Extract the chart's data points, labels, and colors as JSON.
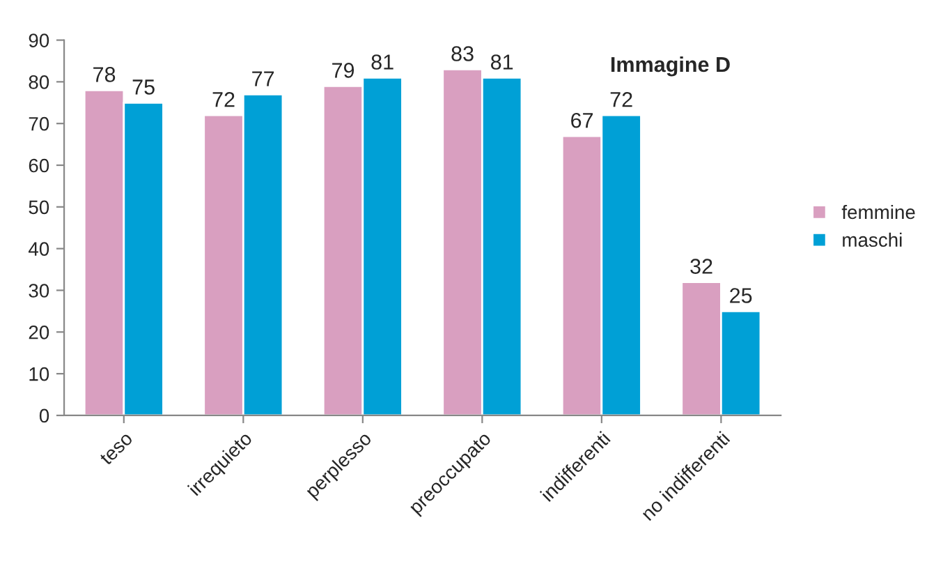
{
  "chart_data": {
    "type": "bar",
    "title": "Immagine D",
    "categories": [
      "teso",
      "irrequieto",
      "perplesso",
      "preoccupato",
      "indifferenti",
      "no indifferenti"
    ],
    "series": [
      {
        "name": "femmine",
        "color": "#d99fc0",
        "values": [
          78,
          72,
          79,
          83,
          67,
          32
        ]
      },
      {
        "name": "maschi",
        "color": "#00a0d6",
        "values": [
          75,
          77,
          81,
          81,
          72,
          25
        ]
      }
    ],
    "ylim": [
      0,
      90
    ],
    "yticks": [
      0,
      10,
      20,
      30,
      40,
      50,
      60,
      70,
      80,
      90
    ],
    "data_labels": true,
    "legend": "right",
    "grid": false
  }
}
